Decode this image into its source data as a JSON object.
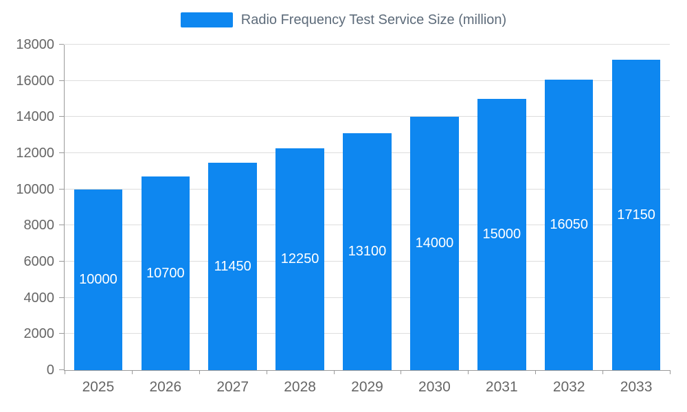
{
  "legend": {
    "label": "Radio Frequency Test Service Size (million)"
  },
  "chart_data": {
    "type": "bar",
    "title": "Radio Frequency Test Service Size (million)",
    "categories": [
      "2025",
      "2026",
      "2027",
      "2028",
      "2029",
      "2030",
      "2031",
      "2032",
      "2033"
    ],
    "values": [
      10000,
      10700,
      11450,
      12250,
      13100,
      14000,
      15000,
      16050,
      17150
    ],
    "series_name": "Radio Frequency Test Service Size (million)",
    "xlabel": "",
    "ylabel": "",
    "ylim": [
      0,
      18000
    ],
    "ytick_step": 2000,
    "grid": true,
    "legend_position": "top",
    "value_labels": "inside-center"
  },
  "colors": {
    "bar": "#0e87f0",
    "grid": "#dddddd",
    "axis": "#999999",
    "tick_text": "#666666",
    "legend_text": "#5d6b7a",
    "bar_label_text": "#ffffff",
    "background": "#ffffff"
  }
}
